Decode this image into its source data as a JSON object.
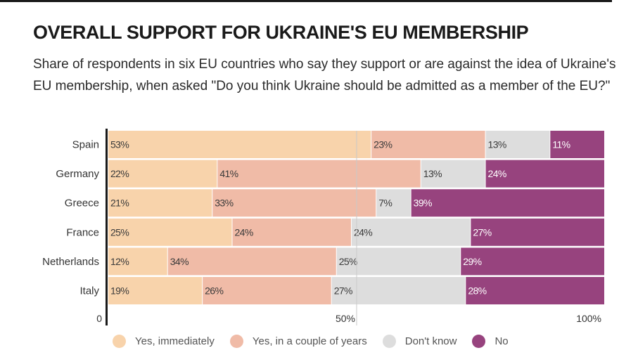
{
  "chart_data": {
    "type": "bar",
    "orientation": "horizontal",
    "stacked": true,
    "title": "OVERALL SUPPORT FOR UKRAINE'S EU MEMBERSHIP",
    "subtitle": "Share of respondents in six EU countries who say they support or are against the idea of Ukraine's EU membership, when asked \"Do you think Ukraine should be admitted as a member of the EU?\"",
    "categories": [
      "Spain",
      "Germany",
      "Greece",
      "France",
      "Netherlands",
      "Italy"
    ],
    "series": [
      {
        "name": "Yes, immediately",
        "color": "#f8d3ab",
        "label_color": "#3a3a3a",
        "values": [
          53,
          22,
          21,
          25,
          12,
          19
        ],
        "labels": [
          "53%",
          "22%",
          "21%",
          "25%",
          "12%",
          "19%"
        ]
      },
      {
        "name": "Yes, in a couple of years",
        "color": "#f0bba7",
        "label_color": "#3a3a3a",
        "values": [
          23,
          41,
          33,
          24,
          34,
          26
        ],
        "labels": [
          "23%",
          "41%",
          "33%",
          "24%",
          "34%",
          "26%"
        ]
      },
      {
        "name": "Don't know",
        "color": "#dddddd",
        "label_color": "#3a3a3a",
        "values": [
          13,
          13,
          7,
          24,
          25,
          27
        ],
        "labels": [
          "13%",
          "13%",
          "7%",
          "24%",
          "25%",
          "27%"
        ]
      },
      {
        "name": "No",
        "color": "#97437e",
        "label_color": "#ffffff",
        "values": [
          11,
          24,
          39,
          27,
          29,
          28
        ],
        "labels": [
          "11%",
          "24%",
          "39%",
          "27%",
          "29%",
          "28%"
        ]
      }
    ],
    "xlim": [
      0,
      100
    ],
    "x_ticks": [
      {
        "value": 0,
        "label": "0"
      },
      {
        "value": 50,
        "label": "50%"
      },
      {
        "value": 100,
        "label": "100%"
      }
    ],
    "gridlines": [
      50
    ],
    "legend_position": "bottom"
  }
}
